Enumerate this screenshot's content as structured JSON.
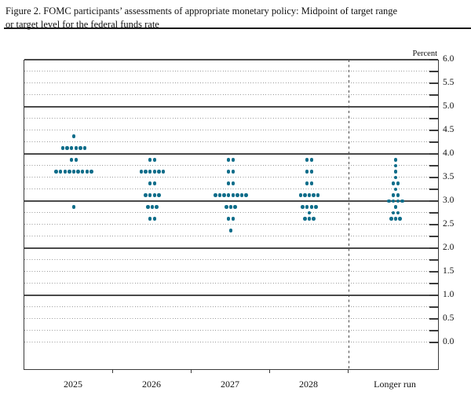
{
  "figure": {
    "title_line1": "Figure 2. FOMC participants’ assessments of appropriate monetary policy: Midpoint of target range",
    "title_line2": "or target level for the federal funds rate",
    "axis_unit_label": "Percent"
  },
  "chart_data": {
    "type": "scatter",
    "title": "Figure 2. FOMC participants’ assessments of appropriate monetary policy: Midpoint of target range or target level for the federal funds rate",
    "ylabel": "Percent",
    "ylim": [
      0.0,
      6.0
    ],
    "y_label_step": 0.5,
    "y_grid_step": 0.25,
    "grid": "solid lines at integers, dotted lines at quarter points",
    "legend_position": "none",
    "dot_color": "#0f6d8a",
    "y_tick_labels": [
      "6.0",
      "5.5",
      "5.0",
      "4.5",
      "4.0",
      "3.5",
      "3.0",
      "2.5",
      "2.0",
      "1.5",
      "1.0",
      "0.5",
      "0.0"
    ],
    "categories": [
      "2025",
      "2026",
      "2027",
      "2028",
      "Longer run"
    ],
    "columns": [
      {
        "label": "2025",
        "dots": [
          {
            "value": 4.375,
            "count": 1
          },
          {
            "value": 4.125,
            "count": 6
          },
          {
            "value": 3.875,
            "count": 2
          },
          {
            "value": 3.625,
            "count": 9
          },
          {
            "value": 2.875,
            "count": 1
          }
        ]
      },
      {
        "label": "2026",
        "dots": [
          {
            "value": 3.875,
            "count": 2
          },
          {
            "value": 3.625,
            "count": 6
          },
          {
            "value": 3.375,
            "count": 2
          },
          {
            "value": 3.125,
            "count": 4
          },
          {
            "value": 2.875,
            "count": 3
          },
          {
            "value": 2.625,
            "count": 2
          }
        ]
      },
      {
        "label": "2027",
        "dots": [
          {
            "value": 3.875,
            "count": 2
          },
          {
            "value": 3.625,
            "count": 2
          },
          {
            "value": 3.375,
            "count": 2
          },
          {
            "value": 3.125,
            "count": 8
          },
          {
            "value": 2.875,
            "count": 3
          },
          {
            "value": 2.625,
            "count": 2
          },
          {
            "value": 2.375,
            "count": 1
          }
        ]
      },
      {
        "label": "2028",
        "dots": [
          {
            "value": 3.875,
            "count": 2
          },
          {
            "value": 3.625,
            "count": 2
          },
          {
            "value": 3.375,
            "count": 2
          },
          {
            "value": 3.125,
            "count": 5
          },
          {
            "value": 2.875,
            "count": 4
          },
          {
            "value": 2.75,
            "count": 1
          },
          {
            "value": 2.625,
            "count": 3
          }
        ]
      },
      {
        "label": "Longer run",
        "dots": [
          {
            "value": 3.875,
            "count": 1
          },
          {
            "value": 3.75,
            "count": 1
          },
          {
            "value": 3.625,
            "count": 1
          },
          {
            "value": 3.5,
            "count": 1
          },
          {
            "value": 3.375,
            "count": 2
          },
          {
            "value": 3.25,
            "count": 1
          },
          {
            "value": 3.125,
            "count": 2
          },
          {
            "value": 3.0,
            "count": 4
          },
          {
            "value": 2.875,
            "count": 1
          },
          {
            "value": 2.75,
            "count": 2
          },
          {
            "value": 2.625,
            "count": 3
          }
        ]
      }
    ]
  },
  "colors": {
    "dot": "#0f6d8a",
    "solid_grid": "#4a4a4a",
    "dotted_grid": "#9a9a9a",
    "frame": "#3a3a3a",
    "text": "#111111",
    "background": "#ffffff"
  }
}
